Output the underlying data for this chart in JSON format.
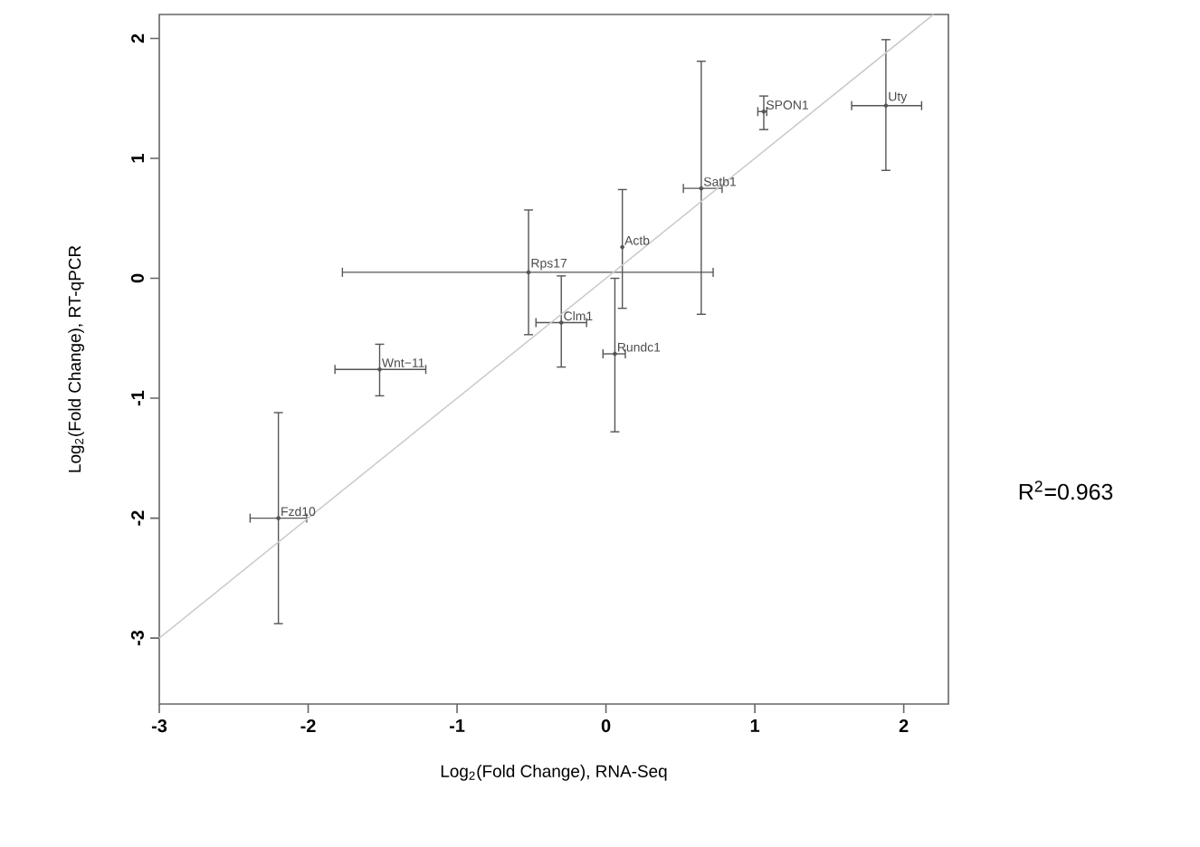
{
  "chart_data": {
    "type": "scatter",
    "xlabel": "Log$_{2}$(Fold Change), RNA-Seq",
    "ylabel": "Log$_{2}$(Fold Change), RT-qPCR",
    "xlim": [
      -3,
      2.3
    ],
    "ylim": [
      -3.55,
      2.2
    ],
    "xticks": [
      -3,
      -2,
      -1,
      0,
      1,
      2
    ],
    "yticks": [
      -3,
      -2,
      -1,
      0,
      1,
      2
    ],
    "series": [
      {
        "color": "#555555",
        "marker": "circle",
        "x": [
          -2.2,
          -1.52,
          -0.52,
          -0.3,
          0.11,
          0.06,
          0.64,
          1.06,
          1.88
        ],
        "values": [
          -2.0,
          -0.76,
          0.05,
          -0.37,
          0.26,
          -0.63,
          0.75,
          1.39,
          1.44
        ],
        "errors": [
          [
            -2.88,
            -1.12
          ],
          [
            -0.98,
            -0.55
          ],
          [
            -0.47,
            0.57
          ],
          [
            -0.74,
            0.02
          ],
          [
            -0.25,
            0.74
          ],
          [
            -1.28,
            0.0
          ],
          [
            -0.3,
            1.81
          ],
          [
            1.24,
            1.52
          ],
          [
            0.9,
            1.99
          ]
        ],
        "xerrors": [
          [
            -2.39,
            -2.01
          ],
          [
            -1.82,
            -1.21
          ],
          [
            -1.77,
            0.72
          ],
          [
            -0.47,
            -0.13
          ],
          null,
          [
            -0.02,
            0.13
          ],
          [
            0.52,
            0.78
          ],
          [
            1.02,
            1.08
          ],
          [
            1.65,
            2.12
          ]
        ]
      },
      {
        "type": "line",
        "marker": "none",
        "color": "#cccccc",
        "x": [
          -3,
          2.2
        ],
        "values": [
          -3,
          2.2
        ]
      }
    ],
    "annotations": [
      {
        "text": "Fzd10",
        "x": -2.2,
        "y": -2.0
      },
      {
        "text": "Wnt−11",
        "x": -1.52,
        "y": -0.76
      },
      {
        "text": "Rps17",
        "x": -0.52,
        "y": 0.05
      },
      {
        "text": "Clm1",
        "x": -0.3,
        "y": -0.37
      },
      {
        "text": "Actb",
        "x": 0.11,
        "y": 0.26
      },
      {
        "text": "Rundc1",
        "x": 0.06,
        "y": -0.63
      },
      {
        "text": "Satb1",
        "x": 0.64,
        "y": 0.75
      },
      {
        "text": "SPON1",
        "x": 1.06,
        "y": 1.39
      },
      {
        "text": "Uty",
        "x": 1.88,
        "y": 1.44
      },
      "R$^{2}$=0.963"
    ]
  }
}
